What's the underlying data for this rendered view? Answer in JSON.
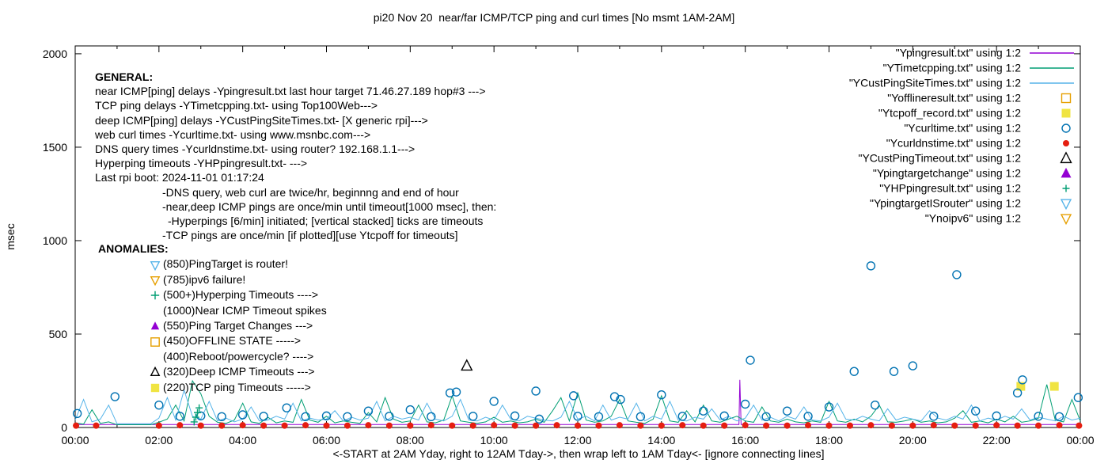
{
  "chart_data": {
    "type": "line",
    "title": "pi20 Nov 20  near/far ICMP/TCP ping and curl times [No msmt 1AM-2AM]",
    "xlabel": "<-START at 2AM Yday, right to 12AM Tday->, then wrap left to 1AM Tday<- [ignore connecting lines]",
    "ylabel": "msec",
    "xlim": [
      0,
      24
    ],
    "ylim": [
      0,
      2042
    ],
    "yticks": [
      0,
      500,
      1000,
      1500,
      2000
    ],
    "xticks": [
      {
        "h": 0,
        "label": "00:00"
      },
      {
        "h": 2,
        "label": "02:00"
      },
      {
        "h": 4,
        "label": "04:00"
      },
      {
        "h": 6,
        "label": "06:00"
      },
      {
        "h": 8,
        "label": "08:00"
      },
      {
        "h": 10,
        "label": "10:00"
      },
      {
        "h": 12,
        "label": "12:00"
      },
      {
        "h": 14,
        "label": "14:00"
      },
      {
        "h": 16,
        "label": "16:00"
      },
      {
        "h": 18,
        "label": "18:00"
      },
      {
        "h": 20,
        "label": "20:00"
      },
      {
        "h": 22,
        "label": "22:00"
      },
      {
        "h": 24,
        "label": "00:00"
      }
    ],
    "legend_position": "top-right",
    "grid": false,
    "series": [
      {
        "name": "\"Ypingresult.txt\" using 1:2",
        "color": "#9400d3",
        "style": "line",
        "points": [
          [
            0,
            16
          ],
          [
            15.7,
            16
          ],
          [
            15.85,
            16
          ],
          [
            15.87,
            255
          ],
          [
            15.9,
            16
          ],
          [
            24,
            16
          ]
        ]
      },
      {
        "name": "\"YTimetcpping.txt\" using 1:2",
        "color": "#009e73",
        "style": "line",
        "x_start": 0,
        "x_step": 0.2,
        "values": [
          25,
          18,
          95,
          22,
          30,
          15,
          15,
          15,
          15,
          15,
          28,
          45,
          120,
          35,
          250,
          180,
          60,
          28,
          22,
          40,
          130,
          30,
          22,
          55,
          25,
          35,
          28,
          150,
          40,
          28,
          60,
          25,
          35,
          28,
          22,
          80,
          30,
          160,
          45,
          28,
          35,
          120,
          30,
          25,
          40,
          170,
          35,
          28,
          22,
          30,
          55,
          28,
          35,
          25,
          30,
          45,
          28,
          90,
          160,
          35,
          185,
          40,
          28,
          35,
          60,
          150,
          35,
          28,
          22,
          45,
          170,
          35,
          28,
          90,
          30,
          120,
          35,
          28,
          45,
          60,
          35,
          28,
          110,
          35,
          28,
          45,
          30,
          25,
          35,
          28,
          140,
          35,
          28,
          45,
          30,
          60,
          120,
          30,
          28,
          35,
          45,
          28,
          35,
          25,
          30,
          50,
          90,
          28,
          35,
          25,
          45,
          30,
          60,
          28,
          35,
          50,
          230,
          40,
          30,
          150,
          35
        ]
      },
      {
        "name": "\"YCustPingSiteTimes.txt\" using 1:2",
        "color": "#56b4e9",
        "style": "line",
        "x_start": 0,
        "x_step": 0.2,
        "values": [
          40,
          150,
          30,
          45,
          120,
          20,
          20,
          20,
          20,
          20,
          50,
          160,
          40,
          200,
          60,
          45,
          140,
          35,
          50,
          30,
          45,
          110,
          35,
          40,
          60,
          45,
          130,
          35,
          50,
          40,
          45,
          90,
          35,
          55,
          40,
          50,
          140,
          35,
          60,
          45,
          55,
          40,
          130,
          45,
          35,
          60,
          150,
          40,
          35,
          55,
          40,
          120,
          45,
          35,
          60,
          50,
          40,
          35,
          55,
          140,
          45,
          60,
          35,
          120,
          40,
          55,
          45,
          130,
          35,
          60,
          45,
          140,
          40,
          35,
          55,
          45,
          100,
          40,
          60,
          35,
          50,
          120,
          40,
          55,
          35,
          60,
          45,
          110,
          40,
          35,
          55,
          130,
          45,
          40,
          60,
          45,
          35,
          100,
          40,
          55,
          45,
          35,
          90,
          50,
          40,
          60,
          45,
          120,
          35,
          50,
          40,
          60,
          45,
          100,
          40,
          55,
          45,
          35,
          60,
          40,
          50
        ]
      },
      {
        "name": "\"Yofflineresult.txt\" using 1:2",
        "color": "#e69f00",
        "style": "points",
        "marker": "square-open",
        "size": 5.5,
        "points": []
      },
      {
        "name": "\"Ytcpoff_record.txt\" using 1:2",
        "color": "#f0e442",
        "style": "points",
        "marker": "square-filled",
        "size": 5.5,
        "points": [
          [
            22.58,
            220
          ],
          [
            23.38,
            220
          ]
        ]
      },
      {
        "name": "\"Ycurltime.txt\" using 1:2",
        "color": "#0072b2",
        "style": "points",
        "marker": "circle-open",
        "size": 5,
        "points": [
          [
            0.05,
            75
          ],
          [
            0.95,
            165
          ],
          [
            2.0,
            120
          ],
          [
            2.5,
            60
          ],
          [
            3.0,
            62
          ],
          [
            3.5,
            58
          ],
          [
            4.0,
            68
          ],
          [
            4.5,
            60
          ],
          [
            5.05,
            105
          ],
          [
            5.5,
            58
          ],
          [
            6.0,
            62
          ],
          [
            6.5,
            58
          ],
          [
            7.0,
            88
          ],
          [
            7.5,
            60
          ],
          [
            8.0,
            95
          ],
          [
            8.5,
            58
          ],
          [
            8.95,
            185
          ],
          [
            9.1,
            190
          ],
          [
            9.5,
            60
          ],
          [
            10.0,
            140
          ],
          [
            10.5,
            62
          ],
          [
            11.0,
            195
          ],
          [
            11.08,
            45
          ],
          [
            11.9,
            170
          ],
          [
            12.0,
            60
          ],
          [
            12.5,
            58
          ],
          [
            12.88,
            165
          ],
          [
            13.02,
            150
          ],
          [
            13.5,
            58
          ],
          [
            14.0,
            175
          ],
          [
            14.5,
            60
          ],
          [
            15.0,
            88
          ],
          [
            15.5,
            62
          ],
          [
            16.0,
            125
          ],
          [
            16.12,
            360
          ],
          [
            16.5,
            58
          ],
          [
            17.0,
            88
          ],
          [
            17.5,
            60
          ],
          [
            18.0,
            110
          ],
          [
            18.6,
            300
          ],
          [
            19.0,
            865
          ],
          [
            19.1,
            120
          ],
          [
            19.55,
            300
          ],
          [
            20.0,
            330
          ],
          [
            20.5,
            60
          ],
          [
            21.05,
            818
          ],
          [
            21.5,
            88
          ],
          [
            22.0,
            62
          ],
          [
            22.5,
            185
          ],
          [
            22.62,
            255
          ],
          [
            23.0,
            60
          ],
          [
            23.5,
            58
          ],
          [
            23.95,
            160
          ]
        ]
      },
      {
        "name": "\"Ycurldnstime.txt\" using 1:2",
        "color": "#e51e10",
        "style": "points",
        "marker": "circle-filled",
        "size": 4,
        "points": [
          [
            0.02,
            10
          ],
          [
            0.5,
            10
          ],
          [
            2,
            10
          ],
          [
            2.5,
            12
          ],
          [
            3,
            10
          ],
          [
            3.5,
            10
          ],
          [
            4,
            12
          ],
          [
            4.5,
            10
          ],
          [
            5,
            10
          ],
          [
            5.5,
            12
          ],
          [
            6,
            10
          ],
          [
            6.5,
            10
          ],
          [
            7,
            12
          ],
          [
            7.5,
            10
          ],
          [
            8,
            10
          ],
          [
            8.5,
            12
          ],
          [
            9,
            10
          ],
          [
            9.5,
            10
          ],
          [
            10,
            12
          ],
          [
            10.5,
            10
          ],
          [
            11,
            10
          ],
          [
            11.5,
            12
          ],
          [
            12,
            10
          ],
          [
            12.5,
            10
          ],
          [
            13,
            12
          ],
          [
            13.5,
            10
          ],
          [
            14,
            10
          ],
          [
            14.5,
            12
          ],
          [
            15,
            10
          ],
          [
            15.5,
            10
          ],
          [
            16,
            12
          ],
          [
            16.5,
            10
          ],
          [
            17,
            10
          ],
          [
            17.5,
            12
          ],
          [
            18,
            10
          ],
          [
            18.5,
            10
          ],
          [
            19,
            12
          ],
          [
            19.5,
            10
          ],
          [
            20,
            10
          ],
          [
            20.5,
            12
          ],
          [
            21,
            10
          ],
          [
            21.5,
            10
          ],
          [
            22,
            12
          ],
          [
            22.5,
            10
          ],
          [
            23,
            10
          ],
          [
            23.5,
            12
          ],
          [
            23.97,
            10
          ]
        ]
      },
      {
        "name": "\"YCustPingTimeout.txt\" using 1:2",
        "color": "#000000",
        "style": "points",
        "marker": "triangle-up-open",
        "size": 6.5,
        "points": [
          [
            9.35,
            330
          ]
        ]
      },
      {
        "name": "\"Ypingtargetchange\" using 1:2",
        "color": "#9400d3",
        "style": "points",
        "marker": "triangle-up-filled",
        "size": 6.5,
        "points": []
      },
      {
        "name": "\"YHPpingresult.txt\" using 1:2",
        "color": "#009e73",
        "style": "points",
        "marker": "plus",
        "size": 4.5,
        "points": [
          [
            2.84,
            30
          ],
          [
            2.88,
            55
          ],
          [
            2.92,
            80
          ],
          [
            2.96,
            105
          ]
        ]
      },
      {
        "name": "\"YpingtargetISrouter\" using 1:2",
        "color": "#56b4e9",
        "style": "points",
        "marker": "triangle-down-open",
        "size": 6,
        "points": []
      },
      {
        "name": "\"Ynoipv6\" using 1:2",
        "color": "#e69f00",
        "style": "points",
        "marker": "triangle-down-open",
        "size": 6,
        "points": []
      }
    ],
    "annotations": {
      "general": {
        "heading": "GENERAL:",
        "lines": [
          {
            "indent": 0,
            "text": "near ICMP[ping] delays -Ypingresult.txt last hour target 71.46.27.189 hop#3 --->"
          },
          {
            "indent": 0,
            "text": "TCP ping delays -YTimetcpping.txt- using Top100Web--->"
          },
          {
            "indent": 0,
            "text": "deep ICMP[ping] delays -YCustPingSiteTimes.txt- [X generic rpi]--->"
          },
          {
            "indent": 0,
            "text": "web curl times -Ycurltime.txt- using www.msnbc.com--->"
          },
          {
            "indent": 0,
            "text": "DNS query times -Ycurldnstime.txt- using router? 192.168.1.1--->"
          },
          {
            "indent": 0,
            "text": "Hyperping timeouts -YHPpingresult.txt- --->"
          },
          {
            "indent": 0,
            "text": "Last rpi boot: 2024-11-01 01:17:24"
          },
          {
            "indent": 1,
            "text": "-DNS query, web curl are twice/hr, beginnng and end of hour"
          },
          {
            "indent": 1,
            "text": "-near,deep ICMP pings are once/min until timeout[1000 msec], then:"
          },
          {
            "indent": 2,
            "text": "-Hyperpings [6/min] initiated; [vertical stacked] ticks are timeouts"
          },
          {
            "indent": 1,
            "text": "-TCP pings are once/min [if plotted][use Ytcpoff for timeouts]"
          }
        ]
      },
      "anomalies": {
        "heading": "ANOMALIES:",
        "lines": [
          {
            "marker": "triangle-down-open",
            "color": "#56b4e9",
            "text": "(850)PingTarget is router!"
          },
          {
            "marker": "triangle-down-open",
            "color": "#e69f00",
            "text": "(785)ipv6 failure!"
          },
          {
            "marker": "plus",
            "color": "#009e73",
            "text": "(500+)Hyperping Timeouts ---->"
          },
          {
            "marker": null,
            "color": null,
            "text": "(1000)Near ICMP Timeout spikes"
          },
          {
            "marker": "triangle-up-filled",
            "color": "#9400d3",
            "text": "(550)Ping Target Changes --->"
          },
          {
            "marker": "square-open",
            "color": "#e69f00",
            "text": "(450)OFFLINE STATE ----->"
          },
          {
            "marker": null,
            "color": null,
            "text": "(400)Reboot/powercycle? ---->"
          },
          {
            "marker": "triangle-up-open",
            "color": "#000000",
            "text": "(320)Deep ICMP Timeouts --->"
          },
          {
            "marker": "square-filled",
            "color": "#f0e442",
            "text": "(220)TCP ping Timeouts ----->"
          }
        ]
      }
    }
  }
}
